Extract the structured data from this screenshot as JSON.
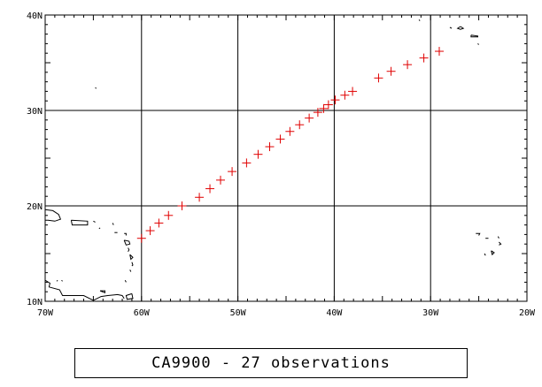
{
  "map": {
    "lon_range": [
      -70,
      -20
    ],
    "lat_range": [
      10,
      40
    ],
    "lon_ticks": [
      {
        "value": -70,
        "label": "70W"
      },
      {
        "value": -60,
        "label": "60W"
      },
      {
        "value": -50,
        "label": "50W"
      },
      {
        "value": -40,
        "label": "40W"
      },
      {
        "value": -30,
        "label": "30W"
      },
      {
        "value": -20,
        "label": "20W"
      }
    ],
    "lat_ticks": [
      {
        "value": 10,
        "label": "10N"
      },
      {
        "value": 20,
        "label": "20N"
      },
      {
        "value": 30,
        "label": "30N"
      },
      {
        "value": 40,
        "label": "40N"
      }
    ],
    "grid": true,
    "coastline_color": "#000000",
    "marker_color": "#e00000",
    "marker_symbol": "plus"
  },
  "observations": [
    {
      "lon": -60.0,
      "lat": 16.6
    },
    {
      "lon": -59.1,
      "lat": 17.4
    },
    {
      "lon": -58.2,
      "lat": 18.2
    },
    {
      "lon": -57.2,
      "lat": 19.0
    },
    {
      "lon": -55.8,
      "lat": 20.0
    },
    {
      "lon": -54.0,
      "lat": 20.9
    },
    {
      "lon": -52.9,
      "lat": 21.8
    },
    {
      "lon": -51.8,
      "lat": 22.7
    },
    {
      "lon": -50.6,
      "lat": 23.6
    },
    {
      "lon": -49.1,
      "lat": 24.5
    },
    {
      "lon": -47.9,
      "lat": 25.4
    },
    {
      "lon": -46.7,
      "lat": 26.2
    },
    {
      "lon": -45.6,
      "lat": 27.0
    },
    {
      "lon": -44.6,
      "lat": 27.8
    },
    {
      "lon": -43.6,
      "lat": 28.5
    },
    {
      "lon": -42.6,
      "lat": 29.2
    },
    {
      "lon": -41.7,
      "lat": 29.8
    },
    {
      "lon": -41.1,
      "lat": 30.2
    },
    {
      "lon": -40.6,
      "lat": 30.6
    },
    {
      "lon": -39.9,
      "lat": 31.1
    },
    {
      "lon": -38.9,
      "lat": 31.6
    },
    {
      "lon": -38.1,
      "lat": 32.0
    },
    {
      "lon": -35.4,
      "lat": 33.4
    },
    {
      "lon": -34.1,
      "lat": 34.1
    },
    {
      "lon": -32.4,
      "lat": 34.8
    },
    {
      "lon": -30.7,
      "lat": 35.5
    },
    {
      "lon": -29.1,
      "lat": 36.2
    }
  ],
  "coastlines": [
    [
      [
        -70,
        19.6
      ],
      [
        -69.2,
        19.5
      ],
      [
        -68.6,
        19.1
      ],
      [
        -68.4,
        18.6
      ],
      [
        -69.0,
        18.4
      ],
      [
        -69.7,
        18.5
      ],
      [
        -70,
        18.5
      ]
    ],
    [
      [
        -67.3,
        18.5
      ],
      [
        -65.6,
        18.4
      ],
      [
        -65.6,
        18.0
      ],
      [
        -67.2,
        18.0
      ],
      [
        -67.3,
        18.5
      ]
    ],
    [
      [
        -65.0,
        18.4
      ],
      [
        -64.8,
        18.3
      ]
    ],
    [
      [
        -64.4,
        17.6
      ],
      [
        -64.3,
        17.7
      ]
    ],
    [
      [
        -63.0,
        18.2
      ],
      [
        -62.9,
        18.0
      ]
    ],
    [
      [
        -62.8,
        17.2
      ],
      [
        -62.5,
        17.2
      ]
    ],
    [
      [
        -61.8,
        17.1
      ],
      [
        -61.6,
        17.1
      ],
      [
        -61.6,
        16.9
      ]
    ],
    [
      [
        -61.8,
        16.4
      ],
      [
        -61.3,
        16.3
      ],
      [
        -61.2,
        16.0
      ],
      [
        -61.6,
        15.9
      ],
      [
        -61.8,
        16.4
      ]
    ],
    [
      [
        -61.4,
        15.6
      ],
      [
        -61.3,
        15.4
      ],
      [
        -61.4,
        15.2
      ]
    ],
    [
      [
        -61.2,
        14.9
      ],
      [
        -60.9,
        14.6
      ],
      [
        -61.1,
        14.4
      ],
      [
        -61.2,
        14.9
      ]
    ],
    [
      [
        -61.0,
        14.1
      ],
      [
        -60.9,
        13.8
      ],
      [
        -61.0,
        13.7
      ]
    ],
    [
      [
        -61.2,
        13.3
      ],
      [
        -61.1,
        13.1
      ]
    ],
    [
      [
        -61.7,
        12.2
      ],
      [
        -61.6,
        12.0
      ]
    ],
    [
      [
        -61.0,
        10.8
      ],
      [
        -60.9,
        10.3
      ],
      [
        -61.5,
        10.2
      ],
      [
        -61.6,
        10.6
      ],
      [
        -61.0,
        10.8
      ]
    ],
    [
      [
        -70,
        12.2
      ],
      [
        -69.5,
        11.9
      ],
      [
        -69.6,
        11.5
      ],
      [
        -68.5,
        11.2
      ],
      [
        -68.2,
        10.6
      ],
      [
        -67.0,
        10.6
      ],
      [
        -66.0,
        10.6
      ],
      [
        -65.0,
        10.1
      ],
      [
        -64.2,
        10.5
      ],
      [
        -63.5,
        10.6
      ],
      [
        -62.5,
        10.7
      ],
      [
        -62.0,
        10.6
      ],
      [
        -61.8,
        10.3
      ]
    ],
    [
      [
        -68.8,
        12.1
      ],
      [
        -68.7,
        12.2
      ]
    ],
    [
      [
        -68.3,
        12.2
      ],
      [
        -68.2,
        12.1
      ]
    ],
    [
      [
        -64.3,
        11.1
      ],
      [
        -63.8,
        11.1
      ],
      [
        -63.8,
        10.9
      ],
      [
        -64.3,
        11.1
      ]
    ],
    [
      [
        -26.9,
        38.8
      ],
      [
        -26.6,
        38.6
      ],
      [
        -26.9,
        38.5
      ],
      [
        -27.2,
        38.6
      ],
      [
        -26.9,
        38.8
      ]
    ],
    [
      [
        -28.0,
        38.7
      ],
      [
        -27.8,
        38.6
      ]
    ],
    [
      [
        -25.8,
        37.9
      ],
      [
        -25.1,
        37.8
      ],
      [
        -25.1,
        37.7
      ],
      [
        -25.8,
        37.7
      ],
      [
        -25.8,
        37.9
      ]
    ],
    [
      [
        -25.1,
        37.0
      ],
      [
        -25.0,
        36.9
      ]
    ],
    [
      [
        -31.2,
        39.5
      ],
      [
        -31.1,
        39.4
      ]
    ],
    [
      [
        -25.3,
        17.1
      ],
      [
        -24.9,
        17.1
      ],
      [
        -25.0,
        16.9
      ]
    ],
    [
      [
        -24.3,
        16.6
      ],
      [
        -24.0,
        16.6
      ]
    ],
    [
      [
        -23.0,
        16.8
      ],
      [
        -22.9,
        16.6
      ]
    ],
    [
      [
        -22.9,
        16.2
      ],
      [
        -22.7,
        16.0
      ],
      [
        -22.9,
        15.9
      ]
    ],
    [
      [
        -23.7,
        15.3
      ],
      [
        -23.4,
        15.1
      ],
      [
        -23.6,
        14.9
      ],
      [
        -23.7,
        15.3
      ]
    ],
    [
      [
        -24.4,
        15.0
      ],
      [
        -24.3,
        14.8
      ]
    ],
    [
      [
        -64.8,
        32.4
      ],
      [
        -64.7,
        32.3
      ]
    ]
  ],
  "caption": "CA9900 - 27 observations"
}
